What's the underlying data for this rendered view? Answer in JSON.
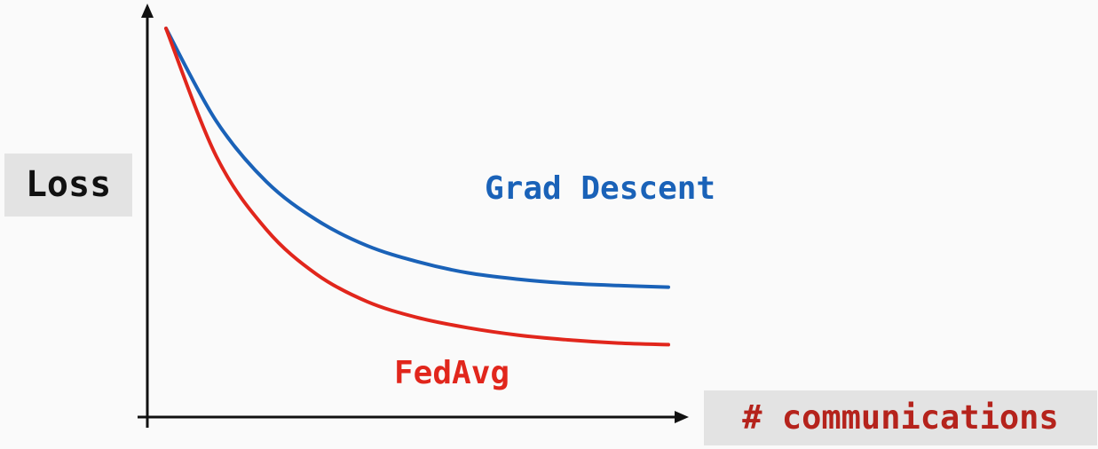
{
  "chart_data": {
    "type": "line",
    "xlabel": "# communications",
    "ylabel": "Loss",
    "series": [
      {
        "name": "Grad Descent",
        "color": "#1a62b8",
        "points": [
          [
            0,
            1.0
          ],
          [
            0.1,
            0.71
          ],
          [
            0.2,
            0.52
          ],
          [
            0.3,
            0.4
          ],
          [
            0.4,
            0.32
          ],
          [
            0.5,
            0.27
          ],
          [
            0.6,
            0.235
          ],
          [
            0.7,
            0.215
          ],
          [
            0.8,
            0.202
          ],
          [
            0.9,
            0.195
          ],
          [
            1.0,
            0.19
          ]
        ]
      },
      {
        "name": "FedAvg",
        "color": "#e1261c",
        "points": [
          [
            0,
            1.0
          ],
          [
            0.1,
            0.6
          ],
          [
            0.2,
            0.37
          ],
          [
            0.3,
            0.23
          ],
          [
            0.4,
            0.145
          ],
          [
            0.5,
            0.095
          ],
          [
            0.6,
            0.063
          ],
          [
            0.7,
            0.04
          ],
          [
            0.8,
            0.025
          ],
          [
            0.9,
            0.015
          ],
          [
            1.0,
            0.01
          ]
        ]
      }
    ]
  },
  "colors": {
    "axis": "#111111",
    "xlabel_text": "#b5231c"
  }
}
